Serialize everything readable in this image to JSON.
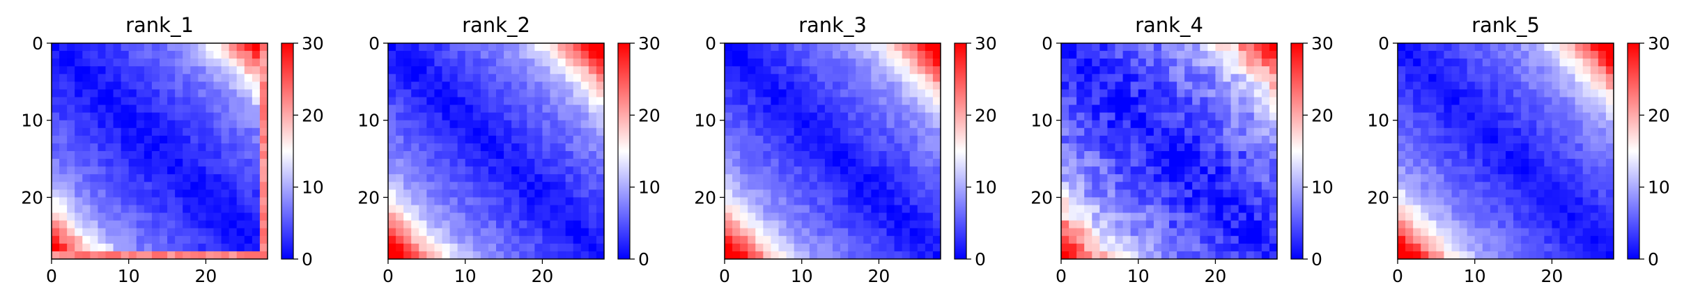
{
  "figure": {
    "panel_count": 5
  },
  "chart_data": [
    {
      "type": "heatmap",
      "title": "rank_1",
      "size": 28,
      "x_ticks": [
        "0",
        "10",
        "20"
      ],
      "y_ticks": [
        "0",
        "10",
        "20"
      ],
      "colorbar": {
        "colormap": "bwr",
        "vmin": 0,
        "vmax": 30,
        "ticks": [
          "0",
          "10",
          "20",
          "30"
        ],
        "colors": [
          "#0000ff",
          "#ffffff",
          "#ff0000"
        ]
      },
      "diagonal_value": 0.5,
      "distance_slope": 0.45,
      "corner_offset": 22,
      "roughness": 1.5,
      "edge_band": {
        "row": 27,
        "value": 22
      }
    },
    {
      "type": "heatmap",
      "title": "rank_2",
      "size": 28,
      "x_ticks": [
        "0",
        "10",
        "20"
      ],
      "y_ticks": [
        "0",
        "10",
        "20"
      ],
      "colorbar": {
        "colormap": "bwr",
        "vmin": 0,
        "vmax": 30,
        "ticks": [
          "0",
          "10",
          "20",
          "30"
        ],
        "colors": [
          "#0000ff",
          "#ffffff",
          "#ff0000"
        ]
      },
      "diagonal_value": 0.8,
      "distance_slope": 0.5,
      "corner_offset": 22,
      "roughness": 1.5,
      "edge_band": null
    },
    {
      "type": "heatmap",
      "title": "rank_3",
      "size": 28,
      "x_ticks": [
        "0",
        "10",
        "20"
      ],
      "y_ticks": [
        "0",
        "10",
        "20"
      ],
      "colorbar": {
        "colormap": "bwr",
        "vmin": 0,
        "vmax": 30,
        "ticks": [
          "0",
          "10",
          "20",
          "30"
        ],
        "colors": [
          "#0000ff",
          "#ffffff",
          "#ff0000"
        ]
      },
      "diagonal_value": 0.8,
      "distance_slope": 0.5,
      "corner_offset": 22,
      "roughness": 1.5,
      "edge_band": null
    },
    {
      "type": "heatmap",
      "title": "rank_4",
      "size": 28,
      "x_ticks": [
        "0",
        "10",
        "20"
      ],
      "y_ticks": [
        "0",
        "10",
        "20"
      ],
      "colorbar": {
        "colormap": "bwr",
        "vmin": 0,
        "vmax": 30,
        "ticks": [
          "0",
          "10",
          "20",
          "30"
        ],
        "colors": [
          "#0000ff",
          "#ffffff",
          "#ff0000"
        ]
      },
      "diagonal_value": 1.0,
      "distance_slope": 0.48,
      "corner_offset": 20,
      "roughness": 2.8,
      "edge_band": null
    },
    {
      "type": "heatmap",
      "title": "rank_5",
      "size": 28,
      "x_ticks": [
        "0",
        "10",
        "20"
      ],
      "y_ticks": [
        "0",
        "10",
        "20"
      ],
      "colorbar": {
        "colormap": "bwr",
        "vmin": 0,
        "vmax": 30,
        "ticks": [
          "0",
          "10",
          "20",
          "30"
        ],
        "colors": [
          "#0000ff",
          "#ffffff",
          "#ff0000"
        ]
      },
      "diagonal_value": 0.8,
      "distance_slope": 0.5,
      "corner_offset": 22,
      "roughness": 1.5,
      "edge_band": null
    }
  ]
}
